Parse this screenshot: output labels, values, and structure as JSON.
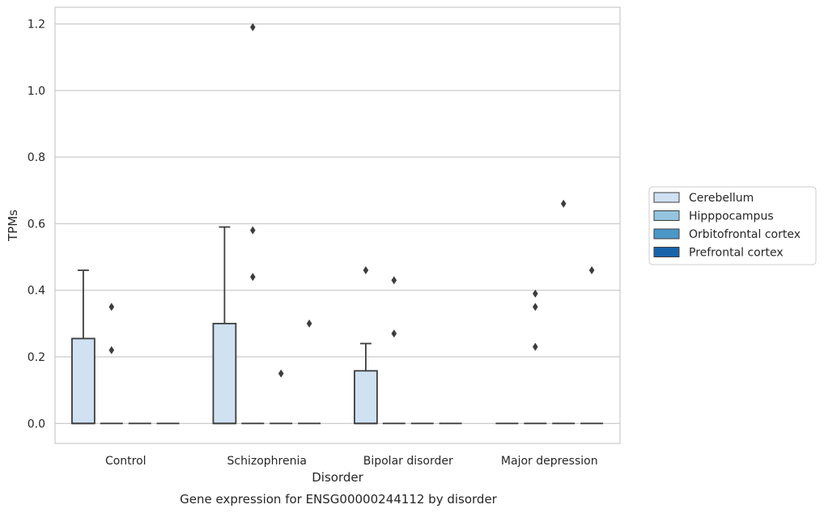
{
  "chart_data": {
    "type": "box",
    "caption": "Gene expression for ENSG00000244112 by disorder",
    "xlabel": "Disorder",
    "ylabel": "TPMs",
    "ylim": [
      -0.06,
      1.25
    ],
    "yticks": [
      0.0,
      0.2,
      0.4,
      0.6,
      0.8,
      1.0,
      1.2
    ],
    "ytick_labels": [
      "0.0",
      "0.2",
      "0.4",
      "0.6",
      "0.8",
      "1.0",
      "1.2"
    ],
    "categories": [
      "Control",
      "Schizophrenia",
      "Bipolar disorder",
      "Major depression"
    ],
    "grid": "horizontal",
    "legend_position": "right-center",
    "series": [
      {
        "name": "Cerebellum",
        "color": "#d0e1f2",
        "boxes": [
          {
            "q1": 0,
            "median": 0,
            "q3": 0.255,
            "whislo": 0,
            "whishi": 0.46,
            "fliers": []
          },
          {
            "q1": 0,
            "median": 0,
            "q3": 0.3,
            "whislo": 0,
            "whishi": 0.59,
            "fliers": []
          },
          {
            "q1": 0,
            "median": 0,
            "q3": 0.158,
            "whislo": 0,
            "whishi": 0.24,
            "fliers": [
              0.46
            ]
          },
          {
            "q1": 0,
            "median": 0,
            "q3": 0,
            "whislo": 0,
            "whishi": 0,
            "fliers": []
          }
        ]
      },
      {
        "name": "Hipppocampus",
        "color": "#94c4df",
        "boxes": [
          {
            "q1": 0,
            "median": 0,
            "q3": 0,
            "whislo": 0,
            "whishi": 0,
            "fliers": [
              0.22,
              0.35
            ]
          },
          {
            "q1": 0,
            "median": 0,
            "q3": 0,
            "whislo": 0,
            "whishi": 0,
            "fliers": [
              1.19,
              0.58,
              0.44
            ]
          },
          {
            "q1": 0,
            "median": 0,
            "q3": 0,
            "whislo": 0,
            "whishi": 0,
            "fliers": [
              0.43,
              0.27
            ]
          },
          {
            "q1": 0,
            "median": 0,
            "q3": 0,
            "whislo": 0,
            "whishi": 0,
            "fliers": [
              0.39,
              0.35,
              0.23
            ]
          }
        ]
      },
      {
        "name": "Orbitofrontal cortex",
        "color": "#4a98c9",
        "boxes": [
          {
            "q1": 0,
            "median": 0,
            "q3": 0,
            "whislo": 0,
            "whishi": 0,
            "fliers": []
          },
          {
            "q1": 0,
            "median": 0,
            "q3": 0,
            "whislo": 0,
            "whishi": 0,
            "fliers": [
              0.15
            ]
          },
          {
            "q1": 0,
            "median": 0,
            "q3": 0,
            "whislo": 0,
            "whishi": 0,
            "fliers": []
          },
          {
            "q1": 0,
            "median": 0,
            "q3": 0,
            "whislo": 0,
            "whishi": 0,
            "fliers": [
              0.66
            ]
          }
        ]
      },
      {
        "name": "Prefrontal cortex",
        "color": "#1764ab",
        "boxes": [
          {
            "q1": 0,
            "median": 0,
            "q3": 0,
            "whislo": 0,
            "whishi": 0,
            "fliers": []
          },
          {
            "q1": 0,
            "median": 0,
            "q3": 0,
            "whislo": 0,
            "whishi": 0,
            "fliers": [
              0.3
            ]
          },
          {
            "q1": 0,
            "median": 0,
            "q3": 0,
            "whislo": 0,
            "whishi": 0,
            "fliers": []
          },
          {
            "q1": 0,
            "median": 0,
            "q3": 0,
            "whislo": 0,
            "whishi": 0,
            "fliers": [
              0.46
            ]
          }
        ]
      }
    ]
  }
}
